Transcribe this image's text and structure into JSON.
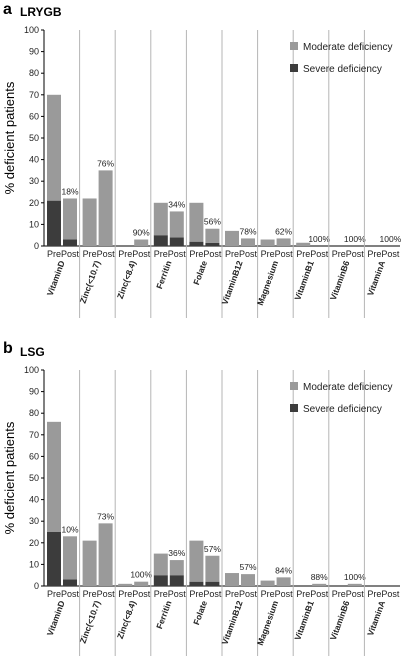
{
  "colors": {
    "moderate": "#9a9a9a",
    "severe": "#3c3c3c",
    "separator": "#b5b5b5",
    "axis": "#000000"
  },
  "chart_data": [
    {
      "type": "bar",
      "panel": "a",
      "title": "LRYGB",
      "ylabel": "% deficient patients",
      "ylim": [
        0,
        100
      ],
      "yticks": [
        "0",
        "10",
        "20",
        "30",
        "40",
        "50",
        "60",
        "70",
        "80",
        "90",
        "100"
      ],
      "grid": false,
      "stacked": true,
      "legend_position": "top-right",
      "sublabels": [
        "Pre",
        "Post"
      ],
      "categories": [
        "VitaminD",
        "Zinc(<10.7)",
        "Zinc(<8.4)",
        "Ferritin",
        "Folate",
        "VitaminB12",
        "Magnesium",
        "VitaminB1",
        "VitaminB6",
        "VitaminA"
      ],
      "series": [
        {
          "name": "Moderate deficiency",
          "pre": [
            49,
            22,
            0,
            15,
            18,
            7,
            3,
            1.5,
            0,
            0
          ],
          "post": [
            19,
            35,
            3,
            12,
            6.5,
            3.5,
            3.5,
            0,
            0,
            0
          ]
        },
        {
          "name": "Severe deficiency",
          "pre": [
            21,
            0,
            0,
            5,
            2,
            0,
            0,
            0,
            0,
            0
          ],
          "post": [
            3,
            0,
            0,
            4,
            1.5,
            0,
            0,
            0,
            0,
            0
          ]
        }
      ],
      "annotations": [
        "18%",
        "76%",
        "90%",
        "34%",
        "56%",
        "78%",
        "62%",
        "100%",
        "100%",
        "100%"
      ]
    },
    {
      "type": "bar",
      "panel": "b",
      "title": "LSG",
      "ylabel": "% deficient patients",
      "ylim": [
        0,
        100
      ],
      "yticks": [
        "0",
        "10",
        "20",
        "30",
        "40",
        "50",
        "60",
        "70",
        "80",
        "90",
        "100"
      ],
      "grid": false,
      "stacked": true,
      "legend_position": "top-right",
      "sublabels": [
        "Pre",
        "Post"
      ],
      "categories": [
        "VitaminD",
        "Zinc(<10.7)",
        "Zinc(<8.4)",
        "Ferritin",
        "Folate",
        "VitaminB12",
        "Magnesium",
        "VitaminB1",
        "VitaminB6",
        "VitaminA"
      ],
      "series": [
        {
          "name": "Moderate deficiency",
          "pre": [
            51,
            21,
            1,
            10,
            19,
            6,
            2.5,
            0,
            0,
            0
          ],
          "post": [
            20,
            29,
            2,
            7,
            12,
            5.5,
            4,
            1,
            1,
            0
          ]
        },
        {
          "name": "Severe deficiency",
          "pre": [
            25,
            0,
            0,
            5,
            2,
            0,
            0,
            0,
            0,
            0
          ],
          "post": [
            3,
            0,
            0,
            5,
            2,
            0,
            0,
            0,
            0,
            0
          ]
        }
      ],
      "annotations": [
        "10%",
        "73%",
        "100%",
        "36%",
        "57%",
        "57%",
        "84%",
        "88%",
        "100%",
        ""
      ]
    }
  ]
}
